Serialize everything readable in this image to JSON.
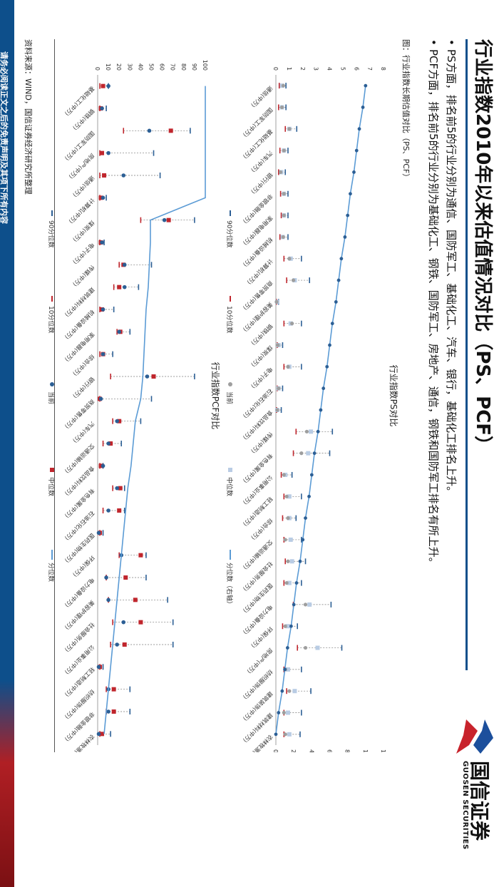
{
  "title": "行业指数2010年以来估值情况对比（PS、PCF）",
  "bullets": [
    "PS方面，排名前5的行业分别为通信、国防军工、基础化工、汽车、银行，基础化工排名上升。",
    "PCF方面，排名前5的行业分别为基础化工、钢铁、国防军工、房地产、通信，钢铁和国防军工排名有所上升。"
  ],
  "figure_label": "图：行业指数长期估值对比（PS、PCF）",
  "source": "资料来源：WIND，国信证券经济研究所整理",
  "disclaimer": "请务必阅读正文之后的免责声明及其项下所有内容",
  "logo": {
    "brand": "国信证券",
    "brand_en": "GUOSEN SECURITIES"
  },
  "colors": {
    "blue": "#2c5f95",
    "line": "#5b9bd5",
    "red": "#c0262d",
    "gray": "#9e9e9e",
    "light_blue": "#b9cce4"
  },
  "chart_data": [
    {
      "type": "scatter",
      "title": "行业指数PS对比",
      "legend": [
        "90分位数",
        "10分位数",
        "当前",
        "中位数",
        "分位数（右轴）"
      ],
      "legend_position": "bottom",
      "ylim_left": [
        0,
        8
      ],
      "yticks_left": [
        0,
        1,
        2,
        3,
        4,
        5,
        6,
        7,
        8
      ],
      "ylim_right": [
        0,
        120
      ],
      "yticks_right": [
        0,
        20,
        40,
        60,
        80,
        100,
        120
      ],
      "categories": [
        "通信(中万)",
        "国防军工(中万)",
        "基础化工(中万)",
        "汽车(中万)",
        "银行(中万)",
        "非银金融(中万)",
        "家用电器(中万)",
        "机械设备(中万)",
        "计算机(中万)",
        "商贸零售(中万)",
        "美容护理(中万)",
        "钢铁(中万)",
        "煤炭(中万)",
        "电子(中万)",
        "石油石化(中万)",
        "食品饮料(中万)",
        "传媒(中万)",
        "有色金属(中万)",
        "公用事业(中万)",
        "轻工制造(中万)",
        "综合(中万)",
        "交通运输(中万)",
        "社会服务(中万)",
        "医药生物(中万)",
        "电力设备(中万)",
        "环保(中万)",
        "房地产(中万)",
        "纺织服饰(中万)",
        "建筑装饰(中万)",
        "建筑材料(中万)",
        "农林牧渔(中万)"
      ],
      "p90": [
        0.75,
        0.75,
        1.55,
        0.9,
        0.7,
        0.9,
        0.9,
        0.9,
        1.9,
        2.5,
        0.2,
        1.9,
        0.5,
        1.9,
        0.5,
        0.4,
        4.2,
        4.0,
        1.2,
        1.9,
        1.5,
        1.9,
        2.2,
        1.9,
        4.1,
        1.6,
        4.9,
        1.9,
        2.6,
        1.9,
        1.8
      ],
      "p10": [
        0.25,
        0.2,
        0.7,
        0.3,
        0.2,
        0.35,
        0.4,
        0.3,
        0.6,
        0.8,
        0.05,
        0.6,
        0.1,
        0.6,
        0.1,
        0.05,
        1.5,
        1.3,
        0.4,
        0.6,
        0.5,
        0.6,
        0.7,
        0.6,
        1.3,
        0.5,
        1.6,
        0.6,
        0.8,
        0.6,
        0.6
      ],
      "current": [
        0.55,
        0.45,
        1.0,
        0.6,
        0.35,
        0.6,
        0.6,
        0.55,
        1.0,
        1.3,
        0.05,
        1.2,
        0.15,
        0.9,
        0.2,
        0.1,
        2.3,
        1.9,
        0.6,
        0.8,
        0.9,
        0.7,
        0.9,
        0.8,
        2.2,
        0.7,
        2.2,
        0.7,
        1.0,
        0.6,
        0.7
      ],
      "median": [
        0.45,
        0.45,
        1.0,
        0.6,
        0.4,
        0.6,
        0.6,
        0.5,
        1.1,
        1.4,
        0.1,
        1.1,
        0.2,
        1.0,
        0.2,
        0.1,
        2.6,
        2.4,
        0.7,
        1.0,
        1.0,
        1.1,
        1.2,
        1.0,
        2.5,
        0.9,
        3.1,
        0.9,
        1.4,
        0.9,
        1.0
      ],
      "percentile_right": [
        100,
        97,
        93,
        90,
        87,
        83,
        80,
        77,
        73,
        70,
        67,
        63,
        60,
        57,
        53,
        50,
        47,
        43,
        40,
        37,
        33,
        30,
        27,
        23,
        20,
        17,
        13,
        10,
        7,
        3,
        0
      ]
    },
    {
      "type": "scatter",
      "title": "行业指数PCF对比",
      "legend": [
        "90分位数",
        "10分位数",
        "当前",
        "中位数",
        "分位数"
      ],
      "legend_position": "bottom",
      "ylim": [
        0,
        100
      ],
      "yticks": [
        0,
        10,
        20,
        30,
        40,
        50,
        60,
        70,
        80,
        90,
        100
      ],
      "categories": [
        "基础化工(中万)",
        "钢铁(中万)",
        "国防军工(中万)",
        "房地产(中万)",
        "通信(中万)",
        "计算机(中万)",
        "煤炭(中万)",
        "电子(中万)",
        "传媒(中万)",
        "建筑材料(中万)",
        "机械设备(中万)",
        "家用电器(中万)",
        "综合(中万)",
        "银行(中万)",
        "商贸零售(中万)",
        "汽车(中万)",
        "交通运输(中万)",
        "食品饮料(中万)",
        "有色金属(中万)",
        "石油石化(中万)",
        "医药生物(中万)",
        "环保(中万)",
        "电力设备(中万)",
        "美容护理(中万)",
        "社会服务(中万)",
        "公用事业(中万)",
        "轻工制造(中万)",
        "纺织服饰(中万)",
        "非银金融(中万)",
        "农林牧渔(中万)"
      ],
      "p90": [
        10,
        8,
        86,
        52,
        58,
        8,
        90,
        6,
        50,
        38,
        15,
        30,
        14,
        90,
        50,
        40,
        22,
        5,
        25,
        25,
        5,
        45,
        45,
        65,
        70,
        70,
        5,
        30,
        30,
        12
      ],
      "p10": [
        2,
        2,
        24,
        2,
        2,
        2,
        40,
        2,
        20,
        15,
        2,
        18,
        2,
        12,
        2,
        14,
        5,
        2,
        14,
        5,
        2,
        20,
        8,
        10,
        14,
        12,
        2,
        8,
        8,
        2
      ],
      "current": [
        10,
        4,
        48,
        10,
        24,
        5,
        62,
        4,
        25,
        25,
        5,
        20,
        5,
        46,
        3,
        18,
        10,
        5,
        18,
        10,
        1,
        22,
        8,
        10,
        24,
        18,
        1,
        10,
        10,
        1
      ],
      "median": [
        5,
        3,
        68,
        4,
        6,
        3,
        66,
        3,
        24,
        20,
        4,
        21,
        5,
        52,
        2,
        20,
        12,
        3,
        21,
        20,
        2,
        40,
        26,
        35,
        40,
        25,
        2,
        15,
        15,
        4
      ],
      "percentile": [
        100,
        100,
        100,
        100,
        100,
        100,
        49,
        49,
        48,
        47,
        45,
        44,
        43,
        42,
        40,
        35,
        33,
        31,
        28,
        26,
        24,
        22,
        20,
        18,
        16,
        14,
        12,
        10,
        8,
        6
      ]
    }
  ]
}
